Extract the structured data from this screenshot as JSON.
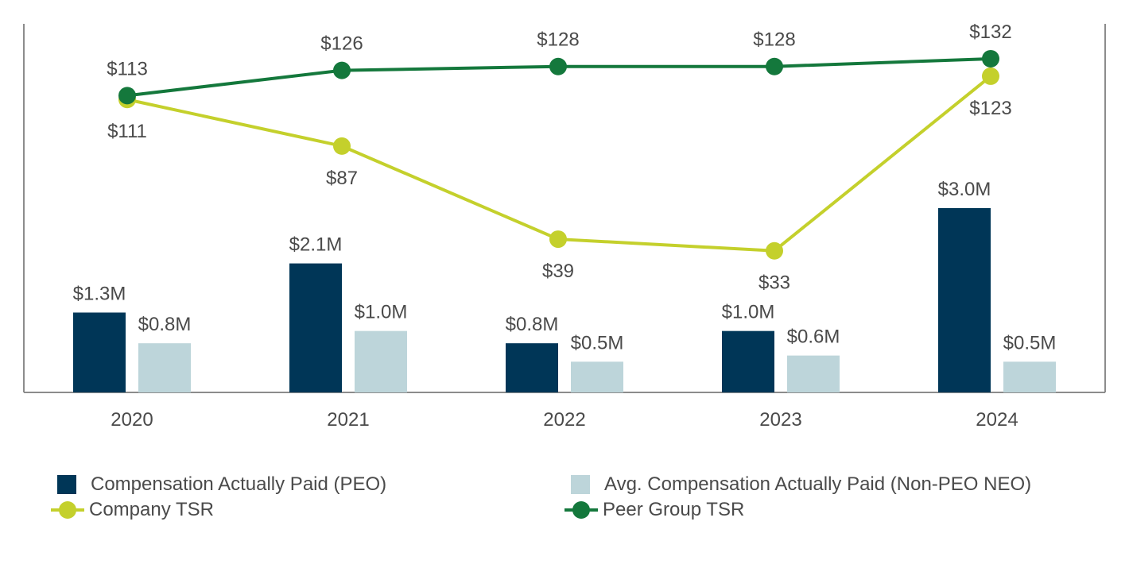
{
  "chart_data": {
    "type": "bar+line",
    "categories": [
      "2020",
      "2021",
      "2022",
      "2023",
      "2024"
    ],
    "bar_series": [
      {
        "key": "peo",
        "name": "Compensation Actually Paid (PEO)",
        "color": "#003657",
        "values": [
          1.3,
          2.1,
          0.8,
          1.0,
          3.0
        ],
        "labels": [
          "$1.3M",
          "$2.1M",
          "$0.8M",
          "$1.0M",
          "$3.0M"
        ]
      },
      {
        "key": "neo",
        "name": "Avg. Compensation Actually Paid (Non-PEO NEO)",
        "color": "#bdd5da",
        "values": [
          0.8,
          1.0,
          0.5,
          0.6,
          0.5
        ],
        "labels": [
          "$0.8M",
          "$1.0M",
          "$0.5M",
          "$0.6M",
          "$0.5M"
        ]
      }
    ],
    "line_series": [
      {
        "key": "company",
        "name": "Company TSR",
        "color": "#c4d02c",
        "values": [
          111,
          87,
          39,
          33,
          123
        ],
        "labels": [
          "$111",
          "$87",
          "$39",
          "$33",
          "$123"
        ],
        "label_position": "below"
      },
      {
        "key": "peer",
        "name": "Peer Group TSR",
        "color": "#14783c",
        "values": [
          113,
          126,
          128,
          128,
          132
        ],
        "labels": [
          "$113",
          "$126",
          "$128",
          "$128",
          "$132"
        ],
        "label_position": "above"
      }
    ],
    "bar_axis_range": [
      0,
      6
    ],
    "line_axis_range": [
      -40,
      150
    ],
    "grid": false,
    "legend_position": "bottom"
  },
  "legend": {
    "peo": "Compensation Actually Paid (PEO)",
    "neo": "Avg. Compensation Actually Paid (Non-PEO NEO)",
    "company": "Company TSR",
    "peer": "Peer Group TSR"
  },
  "colors": {
    "peo": "#003657",
    "neo": "#bdd5da",
    "company": "#c4d02c",
    "peer": "#14783c",
    "axis": "#8c8c8c",
    "text": "#4a4a4a"
  }
}
